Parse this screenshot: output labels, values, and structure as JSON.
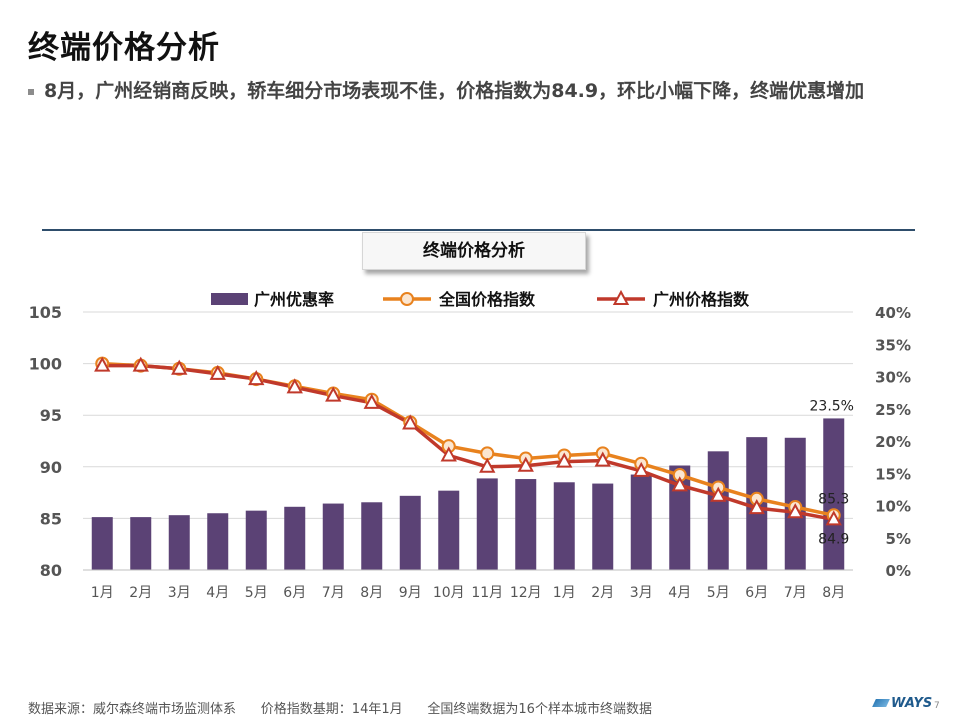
{
  "header": {
    "title": "终端价格分析",
    "bullet": "8月，广州经销商反映，轿车细分市场表现不佳，价格指数为84.9，环比小幅下降，终端优惠增加"
  },
  "chart_title": "终端价格分析",
  "chart_data": {
    "type": "bar+line",
    "categories": [
      "1月",
      "2月",
      "3月",
      "4月",
      "5月",
      "6月",
      "7月",
      "8月",
      "9月",
      "10月",
      "11月",
      "12月",
      "1月",
      "2月",
      "3月",
      "4月",
      "5月",
      "6月",
      "7月",
      "8月"
    ],
    "series": [
      {
        "name": "广州优惠率",
        "type": "bar",
        "axis": "right",
        "color": "#5b4275",
        "values": [
          8.2,
          8.2,
          8.5,
          8.8,
          9.2,
          9.8,
          10.3,
          10.5,
          11.5,
          12.3,
          14.2,
          14.1,
          13.6,
          13.4,
          14.8,
          16.2,
          18.4,
          20.6,
          20.5,
          23.5
        ]
      },
      {
        "name": "全国价格指数",
        "type": "line",
        "axis": "left",
        "color": "#e8821e",
        "values": [
          100,
          99.8,
          99.5,
          99.1,
          98.5,
          97.8,
          97.1,
          96.5,
          94.3,
          92.0,
          91.3,
          90.8,
          91.1,
          91.3,
          90.3,
          89.2,
          88.0,
          86.9,
          86.1,
          85.3
        ]
      },
      {
        "name": "广州价格指数",
        "type": "line",
        "axis": "left",
        "color": "#c0392b",
        "values": [
          99.8,
          99.8,
          99.5,
          99.0,
          98.5,
          97.7,
          96.9,
          96.2,
          94.2,
          91.1,
          90.0,
          90.1,
          90.5,
          90.6,
          89.6,
          88.2,
          87.2,
          86.0,
          85.6,
          84.9
        ]
      }
    ],
    "ylim_left": [
      80,
      105
    ],
    "yticks_left": [
      "80",
      "85",
      "90",
      "95",
      "100",
      "105"
    ],
    "ylim_right": [
      0,
      40
    ],
    "yticks_right": [
      "0%",
      "5%",
      "10%",
      "15%",
      "20%",
      "25%",
      "30%",
      "35%",
      "40%"
    ],
    "annotations": {
      "bar_last": "23.5%",
      "national_last": "85.3",
      "guangzhou_last": "84.9"
    },
    "legend_position": "top",
    "grid": true
  },
  "footer": {
    "source": "数据来源：威尔森终端市场监测体系      价格指数基期：14年1月      全国终端数据为16个样本城市终端数据",
    "logo": "WAYS",
    "page_number": "7"
  }
}
